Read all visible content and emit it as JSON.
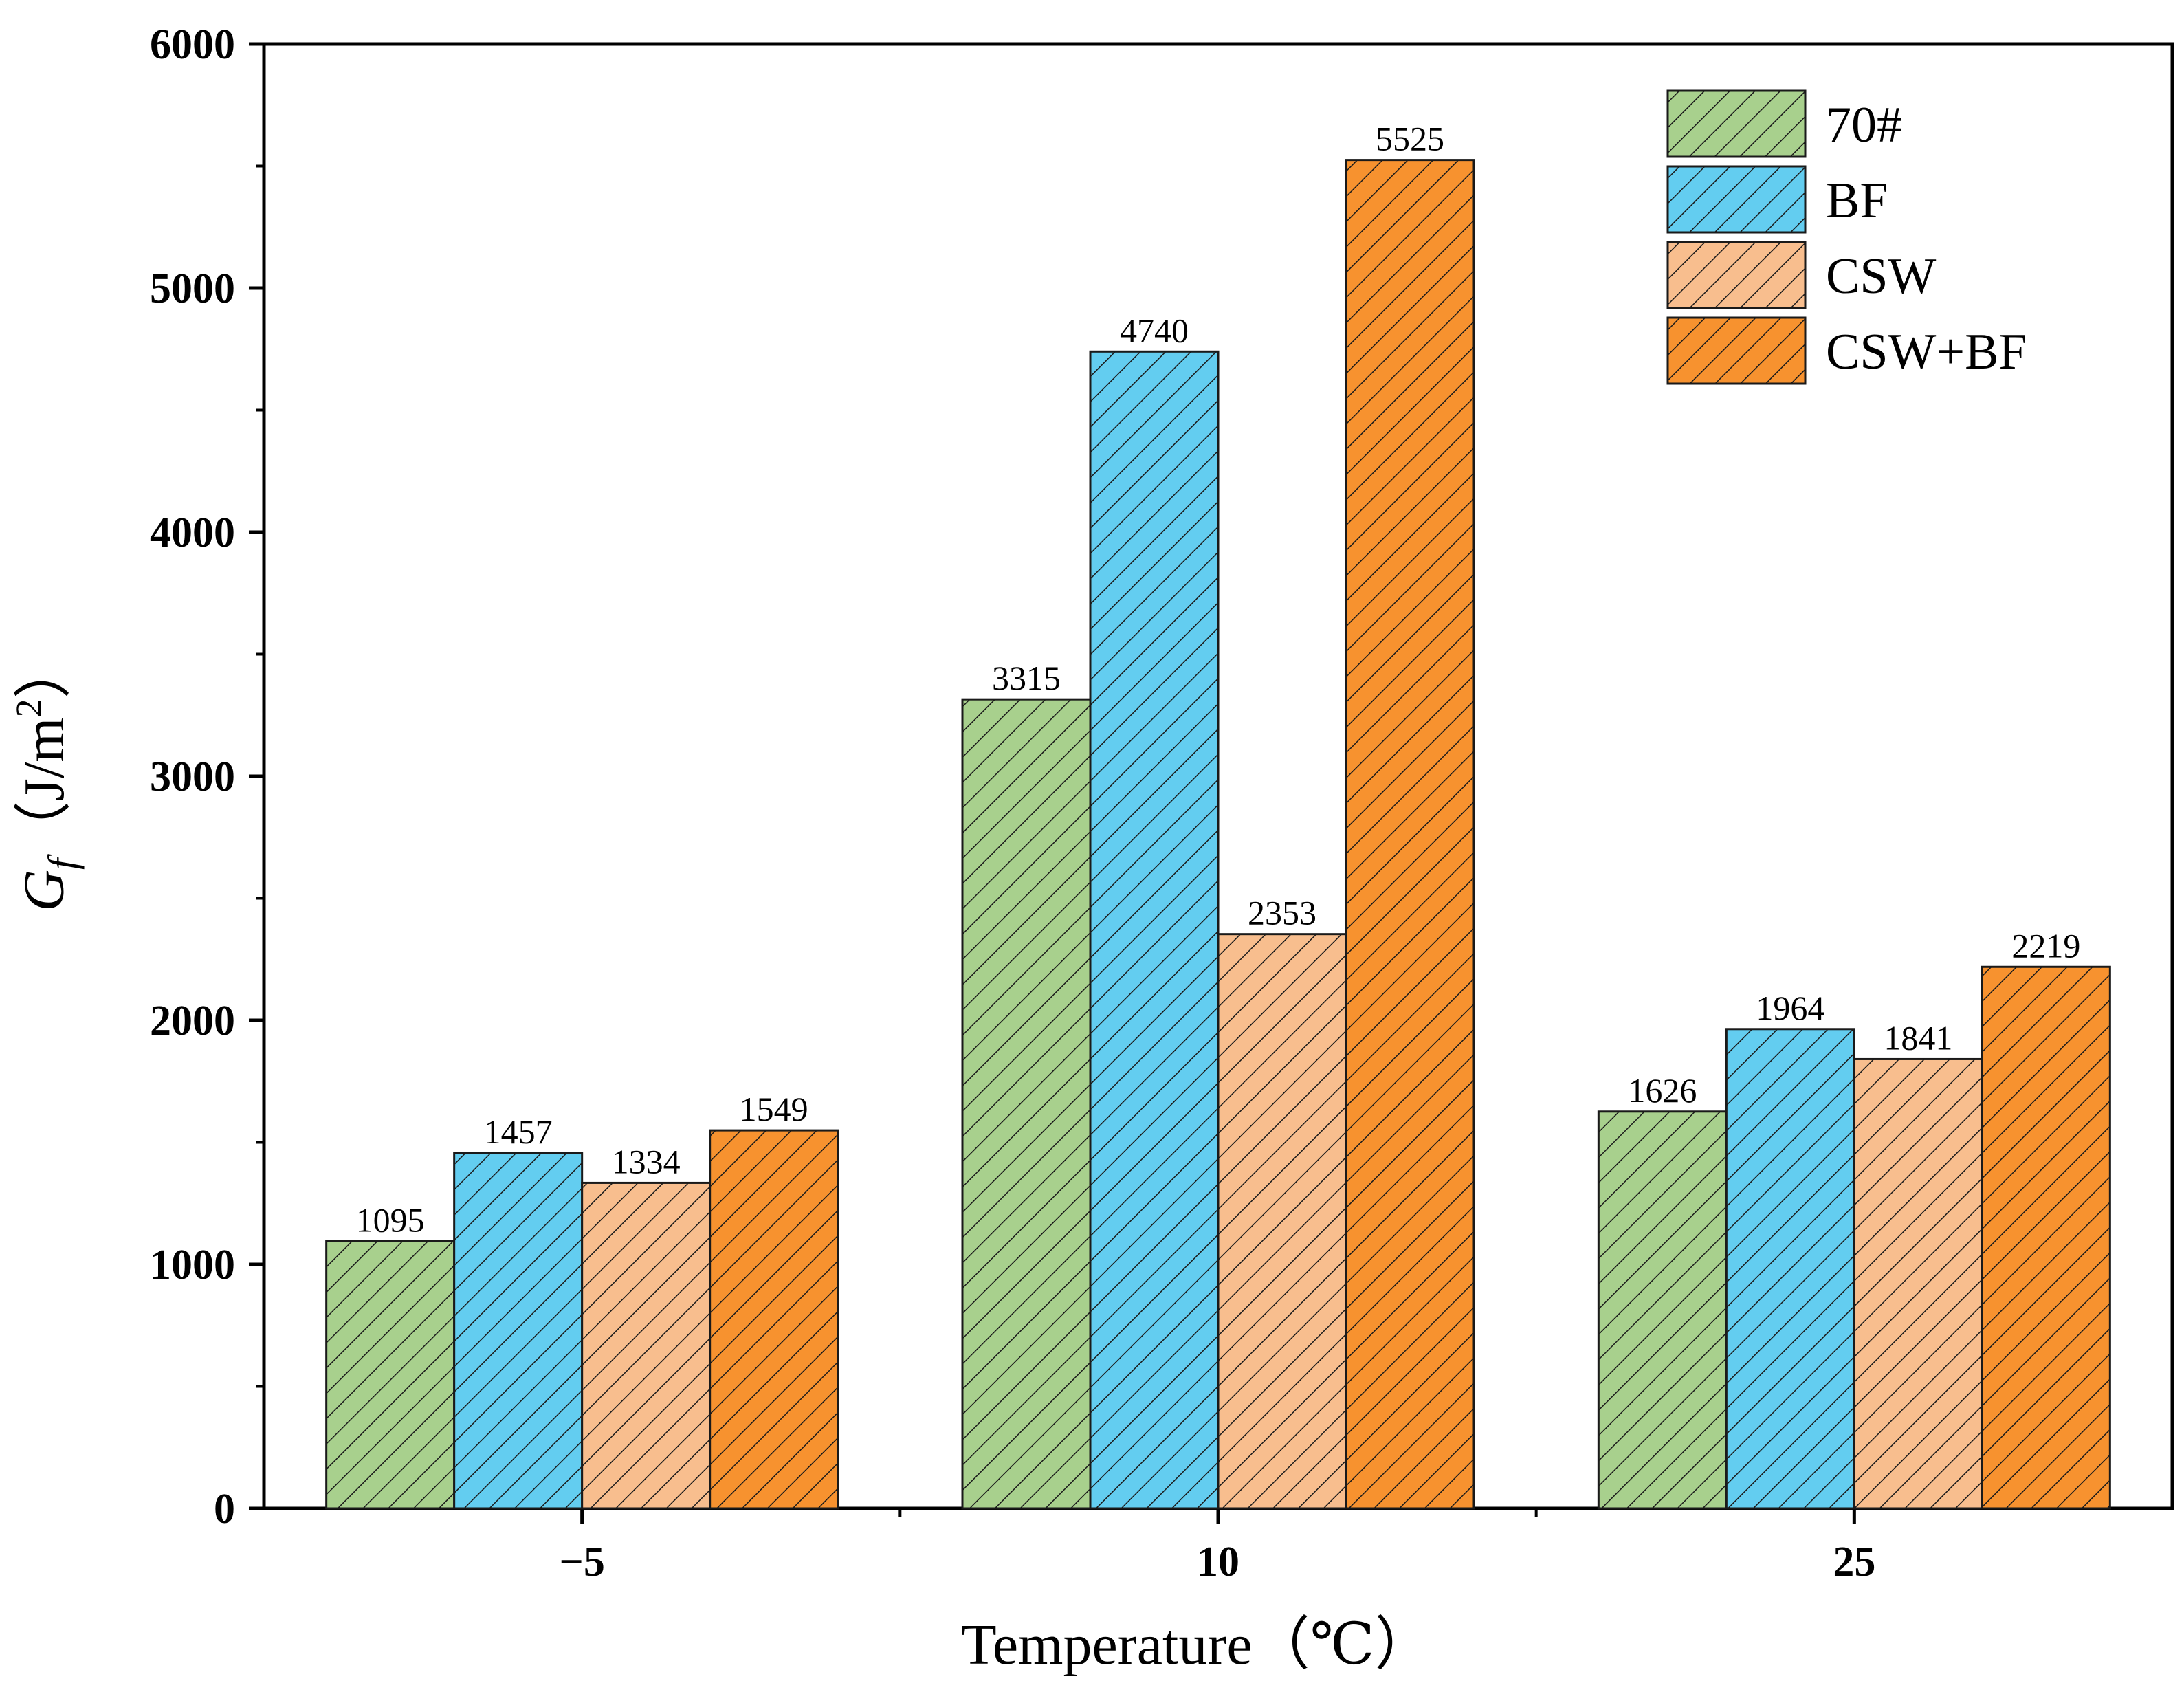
{
  "chart_data": {
    "type": "bar",
    "title": "",
    "xlabel": "Temperature（℃）",
    "ylabel": {
      "symbol": "G",
      "subscript": "f",
      "unit": "（J/m",
      "superscript": "2",
      "close": "）"
    },
    "categories": [
      "−5",
      "10",
      "25"
    ],
    "ylim": [
      0,
      6000
    ],
    "yticks": [
      "0",
      "1000",
      "2000",
      "3000",
      "4000",
      "5000",
      "6000"
    ],
    "ytick_values": [
      0,
      1000,
      2000,
      3000,
      4000,
      5000,
      6000
    ],
    "grid": false,
    "legend_position": "top-right",
    "series": [
      {
        "name": "70#",
        "color": "#a8d08d",
        "values": [
          1095,
          3315,
          1626
        ],
        "labels": [
          "1095",
          "3315",
          "1626"
        ]
      },
      {
        "name": "BF",
        "color": "#63cdf0",
        "values": [
          1457,
          4740,
          1964
        ],
        "labels": [
          "1457",
          "4740",
          "1964"
        ]
      },
      {
        "name": "CSW",
        "color": "#f8be8e",
        "values": [
          1334,
          2353,
          1841
        ],
        "labels": [
          "1334",
          "2353",
          "1841"
        ]
      },
      {
        "name": "CSW+BF",
        "color": "#f7922f",
        "values": [
          1549,
          5525,
          2219
        ],
        "labels": [
          "1549",
          "5525",
          "2219"
        ]
      }
    ],
    "hatch": "diagonal"
  }
}
